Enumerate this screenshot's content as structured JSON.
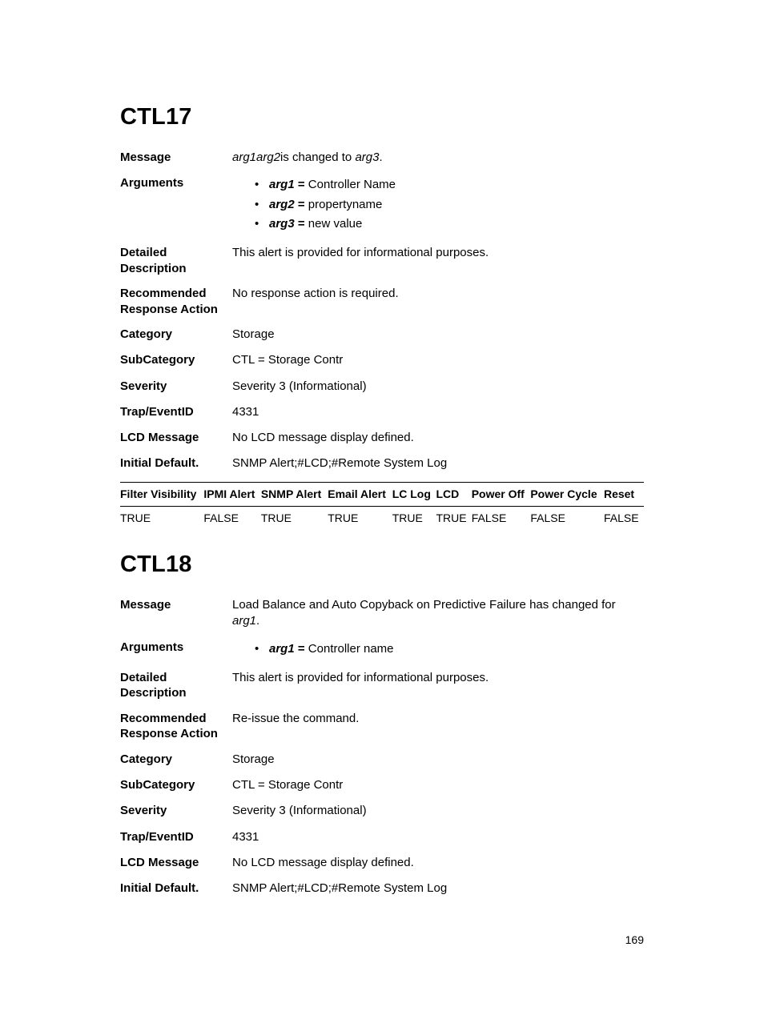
{
  "page_number": "169",
  "colors": {
    "text": "#000000",
    "bg": "#ffffff",
    "rule": "#000000"
  },
  "typography": {
    "heading_size_pt": 22,
    "body_size_pt": 11,
    "table_size_pt": 10,
    "family": "Arial Narrow"
  },
  "sections": {
    "ctl17": {
      "title": "CTL17",
      "fields": {
        "message_label": "Message",
        "message_prefix_italic": "arg1arg2",
        "message_mid": "is changed to",
        "message_suffix_italic": "arg3",
        "message_end": ".",
        "arguments_label": "Arguments",
        "arguments": [
          {
            "name": "arg1",
            "eq": " = ",
            "value": "Controller Name"
          },
          {
            "name": "arg2",
            "eq": " = ",
            "value": "propertyname"
          },
          {
            "name": "arg3",
            "eq": " = ",
            "value": "new value"
          }
        ],
        "detailed_label": "Detailed Description",
        "detailed_value": "This alert is provided for informational purposes.",
        "recommended_label": "Recommended Response Action",
        "recommended_value": "No response action is required.",
        "category_label": "Category",
        "category_value": "Storage",
        "subcategory_label": "SubCategory",
        "subcategory_value": "CTL = Storage Contr",
        "severity_label": "Severity",
        "severity_value": "Severity 3 (Informational)",
        "trap_label": "Trap/EventID",
        "trap_value": "4331",
        "lcd_label": "LCD Message",
        "lcd_value": "No LCD message display defined.",
        "initial_label": "Initial Default.",
        "initial_value": "SNMP Alert;#LCD;#Remote System Log"
      },
      "table": {
        "headers": [
          "Filter Visibility",
          "IPMI Alert",
          "SNMP Alert",
          "Email Alert",
          "LC Log",
          "LCD",
          "Power Off",
          "Power Cycle",
          "Reset"
        ],
        "rows": [
          [
            "TRUE",
            "FALSE",
            "TRUE",
            "TRUE",
            "TRUE",
            "TRUE",
            "FALSE",
            "FALSE",
            "FALSE"
          ]
        ],
        "col_widths_pct": [
          11,
          11,
          10,
          10,
          11,
          11,
          12,
          11,
          13
        ]
      }
    },
    "ctl18": {
      "title": "CTL18",
      "fields": {
        "message_label": "Message",
        "message_text": "Load Balance and Auto Copyback on Predictive Failure has changed for",
        "message_suffix_italic": "arg1",
        "message_end": ".",
        "arguments_label": "Arguments",
        "arguments": [
          {
            "name": "arg1",
            "eq": " = ",
            "value": "Controller name"
          }
        ],
        "detailed_label": "Detailed Description",
        "detailed_value": "This alert is provided for informational purposes.",
        "recommended_label": "Recommended Response Action",
        "recommended_value": "Re-issue the command.",
        "category_label": "Category",
        "category_value": "Storage",
        "subcategory_label": "SubCategory",
        "subcategory_value": "CTL = Storage Contr",
        "severity_label": "Severity",
        "severity_value": "Severity 3 (Informational)",
        "trap_label": "Trap/EventID",
        "trap_value": "4331",
        "lcd_label": "LCD Message",
        "lcd_value": "No LCD message display defined.",
        "initial_label": "Initial Default.",
        "initial_value": "SNMP Alert;#LCD;#Remote System Log"
      }
    }
  }
}
